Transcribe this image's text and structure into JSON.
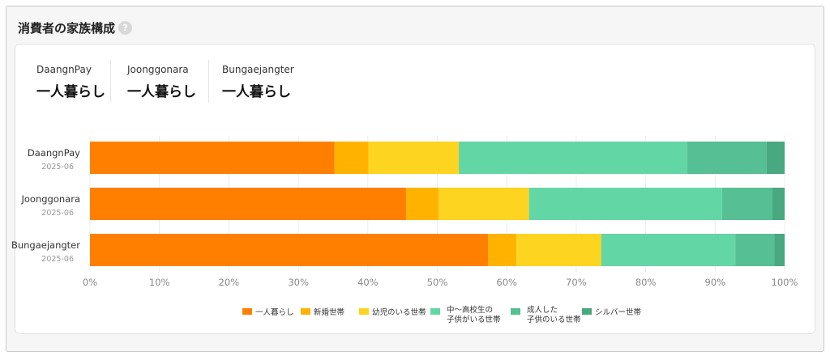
{
  "panel": {
    "title": "消費者の家族構成",
    "help_icon": "?"
  },
  "summary": [
    {
      "name": "DaangnPay",
      "value": "一人暮らし"
    },
    {
      "name": "Joonggonara",
      "value": "一人暮らし"
    },
    {
      "name": "Bungaejangter",
      "value": "一人暮らし"
    }
  ],
  "chart_data": {
    "type": "bar",
    "orientation": "horizontal",
    "stacked": true,
    "categories": [
      "DaangnPay",
      "Joonggonara",
      "Bungaejangter"
    ],
    "category_dates": [
      "2025-06",
      "2025-06",
      "2025-06"
    ],
    "xlim": [
      0,
      100
    ],
    "x_ticks": [
      "0%",
      "10%",
      "20%",
      "30%",
      "40%",
      "50%",
      "60%",
      "70%",
      "80%",
      "90%",
      "100%"
    ],
    "grid": true,
    "legend_position": "bottom",
    "series": [
      {
        "name": "一人暮らし",
        "color": "#ff7f00",
        "values": [
          35.2,
          45.5,
          57.3
        ]
      },
      {
        "name": "新婚世帯",
        "color": "#ffb300",
        "values": [
          4.9,
          4.7,
          4.1
        ]
      },
      {
        "name": "幼児のいる世帯",
        "color": "#fdd41f",
        "values": [
          13.0,
          13.0,
          12.2
        ]
      },
      {
        "name": "中〜高校生の\n子供がいる世帯",
        "color": "#63d6a5",
        "values": [
          32.9,
          27.8,
          19.3
        ]
      },
      {
        "name": "成人した\n子供のいる世帯",
        "color": "#56bf94",
        "values": [
          11.4,
          7.2,
          5.6
        ]
      },
      {
        "name": "シルバー世帯",
        "color": "#48a87f",
        "values": [
          2.6,
          1.8,
          1.5
        ]
      }
    ]
  }
}
